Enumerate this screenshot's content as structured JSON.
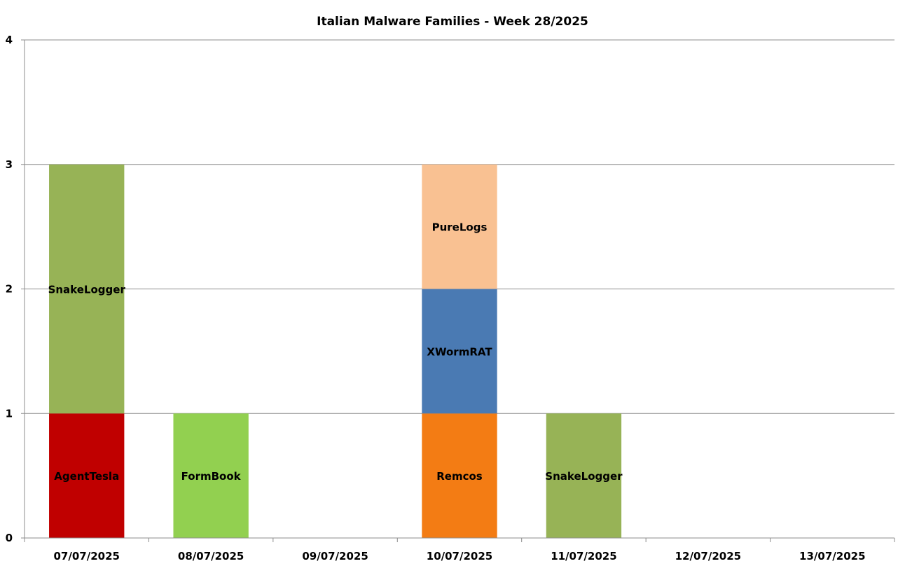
{
  "chart_data": {
    "type": "bar",
    "stacked": true,
    "title": "Italian Malware Families - Week 28/2025",
    "xlabel": "",
    "ylabel": "",
    "ylim": [
      0,
      4
    ],
    "yticks": [
      "0",
      "1",
      "2",
      "3",
      "4"
    ],
    "grid": true,
    "legend": "none",
    "categories": [
      "07/07/2025",
      "08/07/2025",
      "09/07/2025",
      "10/07/2025",
      "11/07/2025",
      "12/07/2025",
      "13/07/2025"
    ],
    "bars": [
      {
        "category": "07/07/2025",
        "segments": [
          {
            "label": "AgentTesla",
            "value": 1,
            "color": "#C00000"
          },
          {
            "label": "SnakeLogger",
            "value": 2,
            "color": "#97B356"
          }
        ]
      },
      {
        "category": "08/07/2025",
        "segments": [
          {
            "label": "FormBook",
            "value": 1,
            "color": "#92D050"
          }
        ]
      },
      {
        "category": "09/07/2025",
        "segments": []
      },
      {
        "category": "10/07/2025",
        "segments": [
          {
            "label": "Remcos",
            "value": 1,
            "color": "#F37C14"
          },
          {
            "label": "XWormRAT",
            "value": 1,
            "color": "#4A7AB3"
          },
          {
            "label": "PureLogs",
            "value": 1,
            "color": "#F9C192"
          }
        ]
      },
      {
        "category": "11/07/2025",
        "segments": [
          {
            "label": "SnakeLogger",
            "value": 1,
            "color": "#97B356"
          }
        ]
      },
      {
        "category": "12/07/2025",
        "segments": []
      },
      {
        "category": "13/07/2025",
        "segments": []
      }
    ]
  }
}
